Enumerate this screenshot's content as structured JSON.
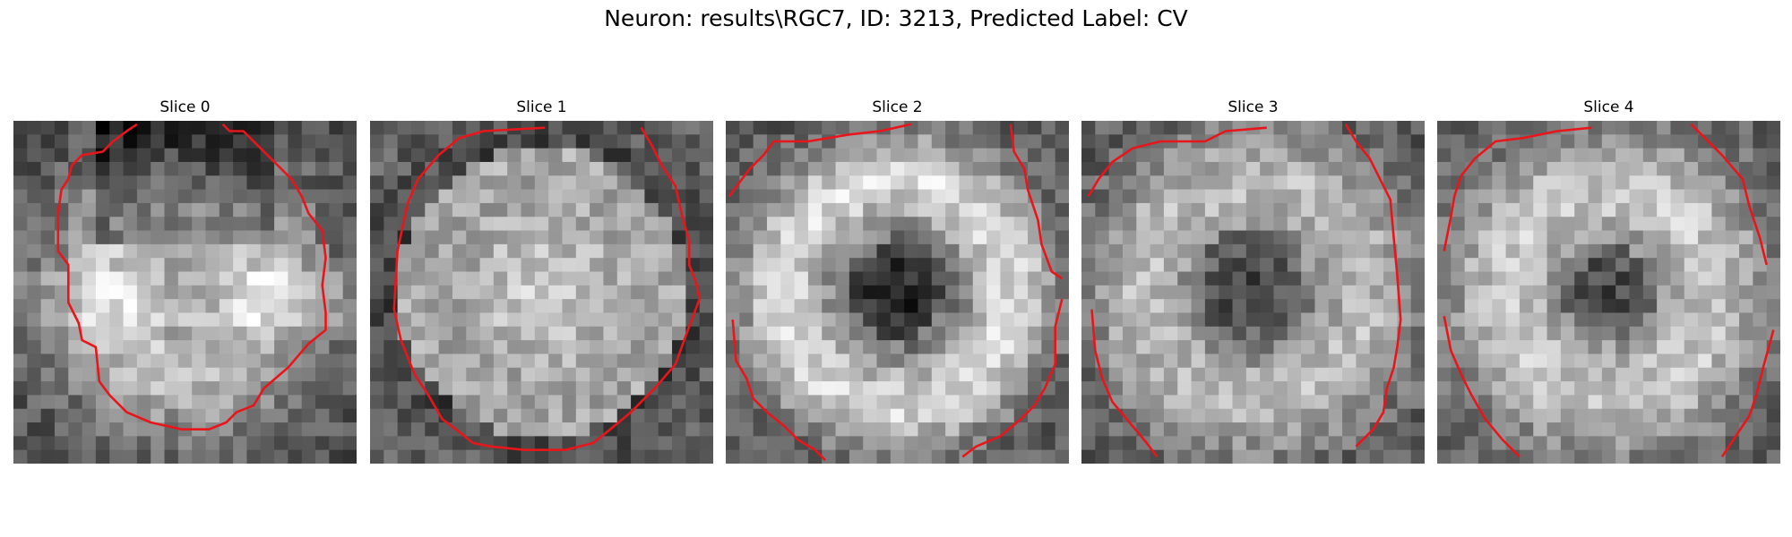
{
  "figure": {
    "title": "Neuron: results\\RGC7, ID: 3213, Predicted Label: CV"
  },
  "panels": [
    {
      "title": "Slice 0",
      "pattern": "ring-bright-lobes",
      "seed": 11
    },
    {
      "title": "Slice 1",
      "pattern": "bright-disc",
      "seed": 23
    },
    {
      "title": "Slice 2",
      "pattern": "ring-dark-center",
      "seed": 37
    },
    {
      "title": "Slice 3",
      "pattern": "ring-diffuse-dark",
      "seed": 41
    },
    {
      "title": "Slice 4",
      "pattern": "faint-ring",
      "seed": 53
    }
  ],
  "contour_color": "#e8161b"
}
